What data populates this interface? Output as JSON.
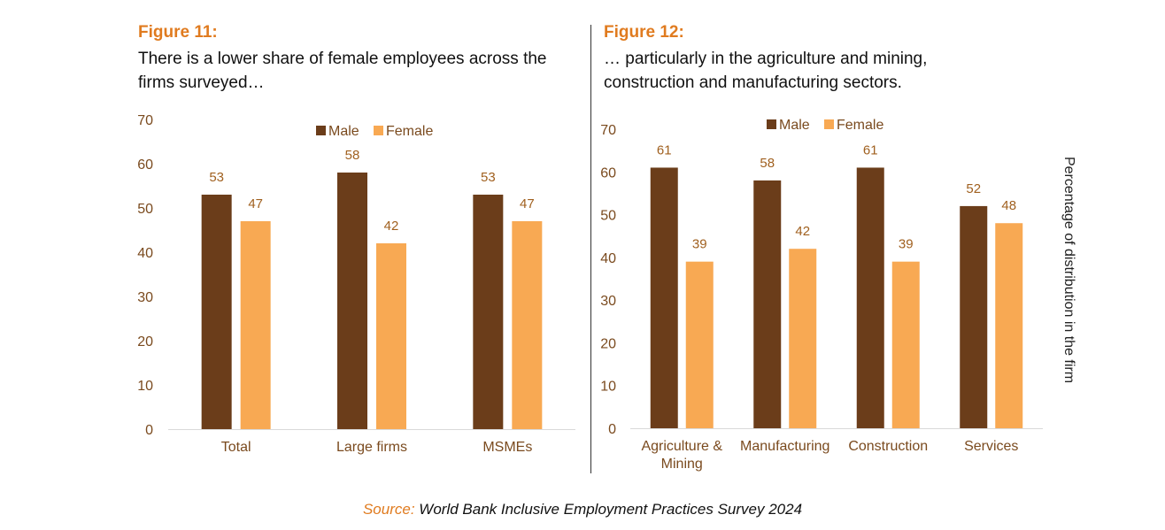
{
  "colors": {
    "male": "#6b3d1a",
    "female": "#f8a953",
    "accent": "#e07b1f"
  },
  "source": {
    "lead": "Source:",
    "text": "World Bank Inclusive Employment Practices Survey 2024"
  },
  "chart_data": [
    {
      "type": "bar",
      "figure_label": "Figure 11:",
      "title": "There is a lower share of female employees across the firms surveyed…",
      "categories": [
        "Total",
        "Large firms",
        "MSMEs"
      ],
      "series": [
        {
          "name": "Male",
          "values": [
            53,
            58,
            53
          ]
        },
        {
          "name": "Female",
          "values": [
            47,
            42,
            47
          ]
        }
      ],
      "ylim": [
        0,
        70
      ],
      "yticks": [
        0,
        10,
        20,
        30,
        40,
        50,
        60,
        70
      ],
      "xlabel": "",
      "ylabel": "",
      "legend": "top-center",
      "grid": false
    },
    {
      "type": "bar",
      "figure_label": "Figure 12:",
      "title": "… particularly in the agriculture and mining, construction and manufacturing sectors.",
      "categories": [
        "Agriculture & Mining",
        "Manufacturing",
        "Construction",
        "Services"
      ],
      "series": [
        {
          "name": "Male",
          "values": [
            61,
            58,
            61,
            52
          ]
        },
        {
          "name": "Female",
          "values": [
            39,
            42,
            39,
            48
          ]
        }
      ],
      "ylim": [
        0,
        70
      ],
      "yticks": [
        0,
        10,
        20,
        30,
        40,
        50,
        60,
        70
      ],
      "xlabel": "",
      "ylabel": "Percentage of distribution in the firm",
      "legend": "top-center",
      "grid": false
    }
  ]
}
